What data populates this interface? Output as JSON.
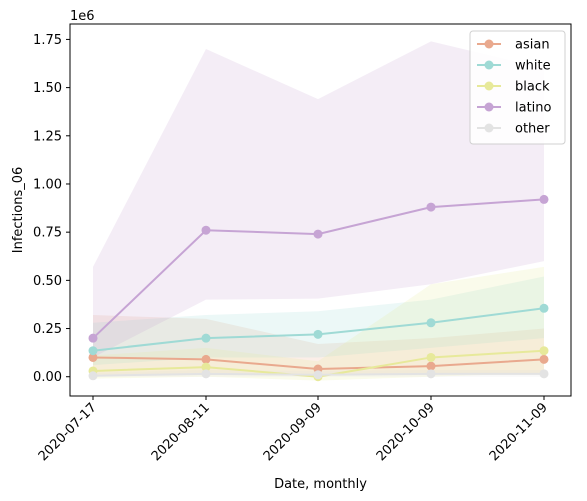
{
  "chart_data": {
    "type": "line",
    "title": "",
    "xlabel": "Date, monthly",
    "ylabel": "Infections_06",
    "y_multiplier_label": "1e6",
    "categories": [
      "2020-07-17",
      "2020-08-11",
      "2020-09-09",
      "2020-10-09",
      "2020-11-09"
    ],
    "ylim": [
      -100000,
      1830000
    ],
    "yticks": [
      0,
      250000,
      500000,
      750000,
      1000000,
      1250000,
      1500000,
      1750000
    ],
    "ytick_labels": [
      "0.00",
      "0.25",
      "0.50",
      "0.75",
      "1.00",
      "1.25",
      "1.50",
      "1.75"
    ],
    "grid": false,
    "legend_position": "top-right",
    "series": [
      {
        "name": "asian",
        "color": "#e9a98e",
        "values": [
          100000,
          90000,
          40000,
          55000,
          90000
        ],
        "band_lower": [
          10000,
          10000,
          10000,
          10000,
          20000
        ],
        "band_upper": [
          320000,
          300000,
          170000,
          200000,
          250000
        ]
      },
      {
        "name": "white",
        "color": "#9fdad5",
        "values": [
          135000,
          200000,
          220000,
          280000,
          355000
        ],
        "band_lower": [
          60000,
          100000,
          100000,
          150000,
          200000
        ],
        "band_upper": [
          280000,
          320000,
          340000,
          400000,
          520000
        ]
      },
      {
        "name": "black",
        "color": "#e7e99a",
        "values": [
          30000,
          50000,
          0,
          100000,
          135000
        ],
        "band_lower": [
          -10000,
          0,
          -20000,
          0,
          20000
        ],
        "band_upper": [
          110000,
          150000,
          80000,
          480000,
          570000
        ]
      },
      {
        "name": "latino",
        "color": "#c6a4d4",
        "values": [
          200000,
          760000,
          740000,
          880000,
          920000
        ],
        "band_lower": [
          100000,
          400000,
          405000,
          480000,
          600000
        ],
        "band_upper": [
          570000,
          1700000,
          1440000,
          1740000,
          1600000
        ]
      },
      {
        "name": "other",
        "color": "#e3e3e3",
        "values": [
          5000,
          15000,
          10000,
          15000,
          15000
        ],
        "band_lower": [
          0,
          0,
          0,
          0,
          0
        ],
        "band_upper": [
          20000,
          35000,
          30000,
          35000,
          35000
        ]
      }
    ]
  }
}
